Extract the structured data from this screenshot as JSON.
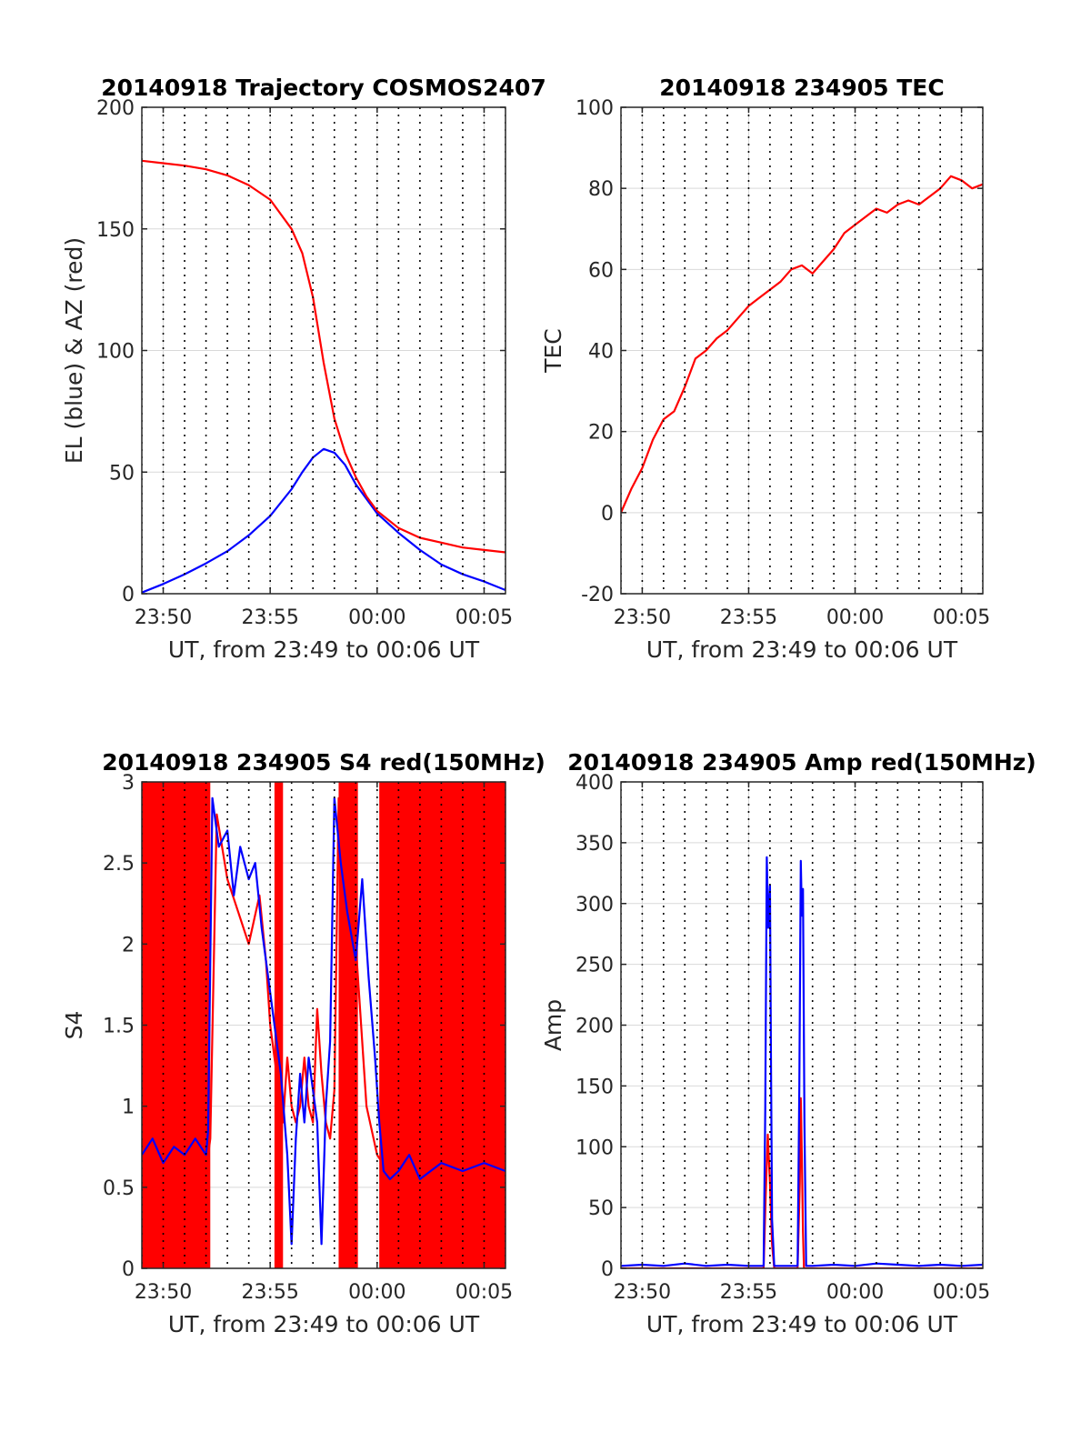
{
  "figure_title": "",
  "colors": {
    "blue": "#0000ff",
    "red": "#ff0000",
    "axis": "#262626",
    "grid": "#d9d9d9",
    "vline": "#000000"
  },
  "chart_data": [
    {
      "type": "line",
      "title": "20140918 Trajectory COSMOS2407",
      "xlabel": "UT, from 23:49 to 00:06 UT",
      "ylabel": "EL (blue) & AZ (red)",
      "xlim": [
        0,
        17
      ],
      "ylim": [
        0,
        200
      ],
      "x_ticks": [
        {
          "x": 1,
          "label": "23:50"
        },
        {
          "x": 6,
          "label": "23:55"
        },
        {
          "x": 11,
          "label": "00:00"
        },
        {
          "x": 16,
          "label": "00:05"
        }
      ],
      "y_ticks": [
        0,
        50,
        100,
        150,
        200
      ],
      "grid": true,
      "minute_lines": true,
      "series": [
        {
          "name": "EL (blue)",
          "color": "blue",
          "x": [
            0,
            1,
            2,
            3,
            4,
            5,
            6,
            7,
            7.5,
            8,
            8.5,
            9,
            9.5,
            10,
            11,
            12,
            13,
            14,
            15,
            16,
            17
          ],
          "values": [
            0.5,
            4,
            8,
            12.5,
            17.5,
            24,
            32,
            43,
            50,
            56,
            59.5,
            58,
            53,
            45,
            33,
            25,
            18,
            12,
            8,
            5,
            1.5
          ]
        },
        {
          "name": "AZ (red)",
          "color": "red",
          "x": [
            0,
            1,
            2,
            3,
            4,
            5,
            6,
            7,
            7.5,
            8,
            8.5,
            9,
            9.5,
            10,
            10.5,
            11,
            12,
            13,
            14,
            15,
            16,
            17
          ],
          "values": [
            178,
            177,
            176,
            174.5,
            172,
            168,
            162,
            150,
            140,
            122,
            95,
            72,
            58,
            48,
            40,
            34,
            27,
            23,
            21,
            19,
            18,
            17
          ]
        }
      ]
    },
    {
      "type": "line",
      "title": "20140918 234905 TEC",
      "xlabel": "UT, from 23:49 to 00:06 UT",
      "ylabel": "TEC",
      "xlim": [
        0,
        17
      ],
      "ylim": [
        -20,
        100
      ],
      "x_ticks": [
        {
          "x": 1,
          "label": "23:50"
        },
        {
          "x": 6,
          "label": "23:55"
        },
        {
          "x": 11,
          "label": "00:00"
        },
        {
          "x": 16,
          "label": "00:05"
        }
      ],
      "y_ticks": [
        -20,
        0,
        20,
        40,
        60,
        80,
        100
      ],
      "grid": true,
      "minute_lines": true,
      "series": [
        {
          "name": "TEC",
          "color": "red",
          "x": [
            0,
            0.5,
            1,
            1.5,
            2,
            2.5,
            3,
            3.5,
            4,
            4.5,
            5,
            5.5,
            6,
            6.5,
            7,
            7.5,
            8,
            8.5,
            9,
            9.5,
            10,
            10.5,
            11,
            11.5,
            12,
            12.5,
            13,
            13.5,
            14,
            14.5,
            15,
            15.5,
            16,
            16.5,
            17
          ],
          "values": [
            0,
            6,
            11,
            18,
            23,
            25,
            31,
            38,
            40,
            43,
            45,
            48,
            51,
            53,
            55,
            57,
            60,
            61,
            59,
            62,
            65,
            69,
            71,
            73,
            75,
            74,
            76,
            77,
            76,
            78,
            80,
            83,
            82,
            80,
            81
          ]
        }
      ]
    },
    {
      "type": "line",
      "title": "20140918 234905 S4 red(150MHz)",
      "xlabel": "UT, from 23:49 to 00:06 UT",
      "ylabel": "S4",
      "xlim": [
        0,
        17
      ],
      "ylim": [
        0,
        3
      ],
      "x_ticks": [
        {
          "x": 1,
          "label": "23:50"
        },
        {
          "x": 6,
          "label": "23:55"
        },
        {
          "x": 11,
          "label": "00:00"
        },
        {
          "x": 16,
          "label": "00:05"
        }
      ],
      "y_ticks": [
        0,
        0.5,
        1,
        1.5,
        2,
        2.5,
        3
      ],
      "y_tick_labels": [
        "0",
        "0.5",
        "1",
        "1.5",
        "2",
        "2.5",
        "3"
      ],
      "grid": true,
      "minute_lines": true,
      "red_fill_ranges": [
        [
          0,
          3.2
        ],
        [
          6.2,
          6.6
        ],
        [
          9.2,
          10.1
        ],
        [
          11.1,
          17
        ]
      ],
      "series": [
        {
          "name": "S4 red",
          "color": "red",
          "x": [
            0,
            1,
            2,
            3,
            3.2,
            3.5,
            4,
            4.5,
            5,
            5.5,
            5.8,
            6,
            6.2,
            6.4,
            6.6,
            6.8,
            7,
            7.2,
            7.4,
            7.6,
            7.8,
            8,
            8.2,
            8.4,
            8.6,
            8.8,
            9,
            9.2,
            9.6,
            10,
            10.5,
            11,
            11.5,
            12,
            13,
            14,
            15,
            16,
            17
          ],
          "values": [
            0.8,
            0.7,
            0.8,
            0.6,
            0.8,
            2.8,
            2.4,
            2.2,
            2.0,
            2.3,
            1.9,
            1.5,
            1.3,
            1.1,
            0.9,
            1.3,
            1.0,
            0.9,
            1.0,
            1.3,
            1.0,
            0.9,
            1.6,
            1.2,
            0.9,
            0.8,
            1.1,
            2.9,
            2.5,
            2.0,
            1.0,
            0.7,
            0.6,
            0.7,
            0.6,
            0.7,
            0.6,
            0.6,
            0.6
          ]
        },
        {
          "name": "S4 blue",
          "color": "blue",
          "x": [
            0,
            0.5,
            1,
            1.5,
            2,
            2.5,
            3,
            3.1,
            3.3,
            3.6,
            4,
            4.3,
            4.6,
            5,
            5.3,
            5.6,
            6,
            6.2,
            6.5,
            6.8,
            7,
            7.2,
            7.4,
            7.6,
            7.8,
            8,
            8.2,
            8.4,
            8.6,
            8.8,
            9,
            9.3,
            9.6,
            10,
            10.3,
            10.6,
            10.9,
            11.1,
            11.3,
            11.6,
            12,
            12.5,
            13,
            14,
            15,
            16,
            17
          ],
          "values": [
            0.7,
            0.8,
            0.65,
            0.75,
            0.7,
            0.8,
            0.7,
            0.85,
            2.9,
            2.6,
            2.7,
            2.3,
            2.6,
            2.4,
            2.5,
            2.1,
            1.7,
            1.5,
            1.2,
            0.7,
            0.15,
            0.8,
            1.2,
            0.9,
            1.3,
            1.1,
            0.9,
            0.15,
            1.0,
            1.4,
            2.9,
            2.5,
            2.2,
            1.9,
            2.4,
            1.8,
            1.3,
            0.9,
            0.6,
            0.55,
            0.6,
            0.7,
            0.55,
            0.65,
            0.6,
            0.65,
            0.6
          ]
        }
      ]
    },
    {
      "type": "line",
      "title": "20140918 234905 Amp red(150MHz)",
      "xlabel": "UT, from 23:49 to 00:06 UT",
      "ylabel": "Amp",
      "xlim": [
        0,
        17
      ],
      "ylim": [
        0,
        400
      ],
      "x_ticks": [
        {
          "x": 1,
          "label": "23:50"
        },
        {
          "x": 6,
          "label": "23:55"
        },
        {
          "x": 11,
          "label": "00:00"
        },
        {
          "x": 16,
          "label": "00:05"
        }
      ],
      "y_ticks": [
        0,
        50,
        100,
        150,
        200,
        250,
        300,
        350,
        400
      ],
      "grid": true,
      "minute_lines": true,
      "series": [
        {
          "name": "Amp red",
          "color": "red",
          "x": [
            0,
            6.7,
            6.8,
            6.9,
            7.0,
            7.1,
            7.2,
            8.3,
            8.4,
            8.45,
            8.5,
            8.55,
            8.6,
            17
          ],
          "values": [
            0,
            0,
            60,
            110,
            70,
            20,
            0,
            0,
            70,
            140,
            90,
            30,
            0,
            0
          ]
        },
        {
          "name": "Amp blue",
          "color": "blue",
          "x": [
            0,
            1,
            2,
            3,
            4,
            5,
            6,
            6.7,
            6.78,
            6.85,
            6.92,
            7.0,
            7.05,
            7.1,
            7.2,
            7.5,
            8.0,
            8.3,
            8.38,
            8.45,
            8.5,
            8.55,
            8.62,
            8.7,
            9,
            10,
            11,
            12,
            13,
            14,
            15,
            16,
            17
          ],
          "values": [
            2,
            3,
            2,
            4,
            2,
            3,
            2,
            2,
            130,
            338,
            280,
            315,
            160,
            40,
            2,
            2,
            2,
            2,
            150,
            335,
            290,
            312,
            120,
            2,
            2,
            3,
            2,
            4,
            3,
            2,
            3,
            2,
            3
          ]
        }
      ]
    }
  ]
}
